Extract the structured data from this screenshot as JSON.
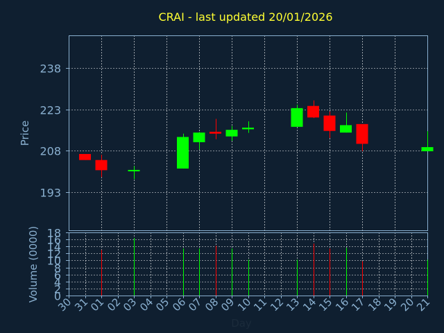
{
  "chart_data": {
    "type": "candlestick",
    "title": "CRAI - last updated 20/01/2026",
    "price_ylabel": "Price",
    "volume_ylabel": "Volume (0000)",
    "xlabel": "Day",
    "x_tick_labels": [
      "30",
      "31",
      "01",
      "02",
      "03",
      "04",
      "05",
      "06",
      "07",
      "08",
      "09",
      "10",
      "11",
      "12",
      "13",
      "14",
      "15",
      "16",
      "17",
      "18",
      "19",
      "20",
      "21"
    ],
    "price_yticks": [
      "193",
      "208",
      "223",
      "238"
    ],
    "volume_yticks": [
      "0",
      "2",
      "4",
      "6",
      "8",
      "10",
      "12",
      "14",
      "16",
      "18"
    ],
    "price_ylim": [
      179,
      250
    ],
    "volume_ylim": [
      0,
      18
    ],
    "grid": true,
    "colors": {
      "up": "#00ff00",
      "down": "#ff0000",
      "background": "#0f1f30",
      "grid": "#ffffff",
      "axis": "#8ab0d0",
      "title": "#ffff33"
    },
    "candles": [
      {
        "day": "30",
        "open": 206.8,
        "high": 206.8,
        "low": 204.6,
        "close": 204.6,
        "volume": 0
      },
      {
        "day": "31",
        "open": 204.6,
        "high": 206.5,
        "low": 198.4,
        "close": 200.9,
        "volume": 13
      },
      {
        "day": "02",
        "open": 201.0,
        "high": 202.4,
        "low": 197.6,
        "close": 201.0,
        "volume": 16.4
      },
      {
        "day": "05",
        "open": 201.5,
        "high": 214.2,
        "low": 201.5,
        "close": 213.0,
        "volume": 13.4
      },
      {
        "day": "06",
        "open": 211.1,
        "high": 214.8,
        "low": 208.4,
        "close": 214.6,
        "volume": 13.4
      },
      {
        "day": "07",
        "open": 214.9,
        "high": 219.6,
        "low": 212.2,
        "close": 214.2,
        "volume": 14.2
      },
      {
        "day": "08",
        "open": 213.2,
        "high": 217.0,
        "low": 211.6,
        "close": 215.6,
        "volume": 13.4
      },
      {
        "day": "09",
        "open": 215.8,
        "high": 218.7,
        "low": 214.5,
        "close": 216.4,
        "volume": 10.2
      },
      {
        "day": "12",
        "open": 216.7,
        "high": 224.8,
        "low": 216.7,
        "close": 223.5,
        "volume": 10.2
      },
      {
        "day": "13",
        "open": 224.3,
        "high": 226.3,
        "low": 219.9,
        "close": 220.1,
        "volume": 14.8
      },
      {
        "day": "14",
        "open": 220.8,
        "high": 222.3,
        "low": 212.6,
        "close": 215.2,
        "volume": 13.4
      },
      {
        "day": "15",
        "open": 214.6,
        "high": 221.9,
        "low": 214.6,
        "close": 217.3,
        "volume": 13.6
      },
      {
        "day": "16",
        "open": 217.7,
        "high": 217.7,
        "low": 207.8,
        "close": 210.5,
        "volume": 9.8
      },
      {
        "day": "20",
        "open": 207.8,
        "high": 215.1,
        "low": 207.8,
        "close": 209.3,
        "volume": 10.2
      }
    ]
  }
}
